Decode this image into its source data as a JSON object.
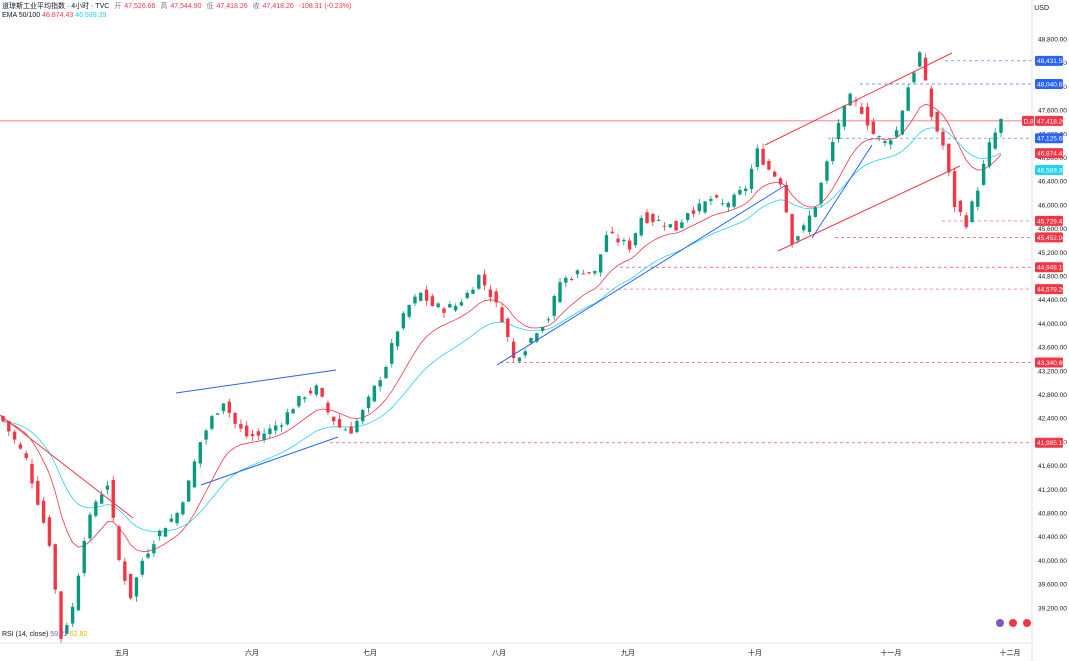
{
  "header": {
    "symbol": "道琼斯工业平均指数 · 4小时 · TVC",
    "open_label": "开",
    "open_value": "47,526.66",
    "high_label": "高",
    "high_value": "47,544.90",
    "low_label": "低",
    "low_value": "47,418.26",
    "close_label": "收",
    "close_value": "47,418.26",
    "change": "-108.31 (-0.23%)"
  },
  "ema": {
    "label": "EMA 50/100",
    "ema50_value": "46,874.43",
    "ema100_value": "46,589.39"
  },
  "rsi": {
    "label": "RSI (14, close)",
    "value1": "59.22",
    "value2": "62.82"
  },
  "currency": "USD",
  "colors": {
    "up": "#089981",
    "down": "#f23645",
    "ema50": "#f23645",
    "ema100": "#22d3ee",
    "trend_blue": "#2962ff",
    "trend_red": "#f23645"
  },
  "chart_data": {
    "type": "candlestick",
    "y_axis_ticks": [
      "48,800.00",
      "48,400.00",
      "48,000.00",
      "47,600.00",
      "47,200.00",
      "46,800.00",
      "46,400.00",
      "46,000.00",
      "45,600.00",
      "45,200.00",
      "44,800.00",
      "44,400.00",
      "44,000.00",
      "43,600.00",
      "43,200.00",
      "42,800.00",
      "42,400.00",
      "42,000.00",
      "41,600.00",
      "41,200.00",
      "40,800.00",
      "40,400.00",
      "40,000.00",
      "39,600.00",
      "39,200.00"
    ],
    "x_axis_labels": [
      "五月",
      "六月",
      "七月",
      "八月",
      "九月",
      "十月",
      "十一月",
      "十二月"
    ],
    "price_labels": [
      {
        "value": 48431.58,
        "text": "48,431.58",
        "color": "#2962ff"
      },
      {
        "value": 48040.63,
        "text": "48,040.63",
        "color": "#2962ff"
      },
      {
        "value": 47418.26,
        "text": "47,418.26",
        "color": "#f23645",
        "prefix": "D,8"
      },
      {
        "value": 47125.65,
        "text": "47,125.65",
        "color": "#2962ff"
      },
      {
        "value": 46874.43,
        "text": "46,874.43",
        "color": "#f23645"
      },
      {
        "value": 46589.39,
        "text": "46,589.39",
        "color": "#22d3ee"
      },
      {
        "value": 45729.42,
        "text": "45,729.42",
        "color": "#f23645"
      },
      {
        "value": 45452.04,
        "text": "45,452.04",
        "color": "#f23645"
      },
      {
        "value": 44948.15,
        "text": "44,948.15",
        "color": "#f23645"
      },
      {
        "value": 44579.2,
        "text": "44,579.20",
        "color": "#f23645"
      },
      {
        "value": 43340.69,
        "text": "43,340.69",
        "color": "#f23645"
      },
      {
        "value": 41985.15,
        "text": "41,985.15",
        "color": "#f23645"
      }
    ],
    "price_anchors": [
      [
        0,
        42350
      ],
      [
        4,
        41700
      ],
      [
        8,
        40300
      ],
      [
        10,
        38700
      ],
      [
        12,
        39200
      ],
      [
        14,
        40400
      ],
      [
        16,
        41000
      ],
      [
        18,
        41300
      ],
      [
        20,
        40000
      ],
      [
        22,
        39400
      ],
      [
        24,
        40000
      ],
      [
        26,
        40350
      ],
      [
        28,
        40600
      ],
      [
        30,
        40800
      ],
      [
        32,
        41300
      ],
      [
        34,
        42000
      ],
      [
        36,
        42400
      ],
      [
        38,
        42700
      ],
      [
        40,
        42300
      ],
      [
        42,
        42100
      ],
      [
        44,
        42100
      ],
      [
        46,
        42200
      ],
      [
        48,
        42350
      ],
      [
        50,
        42600
      ],
      [
        52,
        42800
      ],
      [
        54,
        42900
      ],
      [
        56,
        42500
      ],
      [
        58,
        42250
      ],
      [
        60,
        42200
      ],
      [
        62,
        42500
      ],
      [
        64,
        42900
      ],
      [
        66,
        43300
      ],
      [
        68,
        43900
      ],
      [
        70,
        44300
      ],
      [
        72,
        44500
      ],
      [
        74,
        44300
      ],
      [
        76,
        44250
      ],
      [
        78,
        44300
      ],
      [
        80,
        44500
      ],
      [
        82,
        44800
      ],
      [
        84,
        44500
      ],
      [
        86,
        44100
      ],
      [
        88,
        43400
      ],
      [
        90,
        43600
      ],
      [
        92,
        43900
      ],
      [
        94,
        44100
      ],
      [
        96,
        44700
      ],
      [
        98,
        44800
      ],
      [
        100,
        44900
      ],
      [
        102,
        44850
      ],
      [
        104,
        45500
      ],
      [
        106,
        45400
      ],
      [
        108,
        45300
      ],
      [
        110,
        45800
      ],
      [
        112,
        45750
      ],
      [
        114,
        45700
      ],
      [
        116,
        45600
      ],
      [
        118,
        45900
      ],
      [
        120,
        45950
      ],
      [
        122,
        46100
      ],
      [
        124,
        46000
      ],
      [
        126,
        46100
      ],
      [
        128,
        46300
      ],
      [
        130,
        46900
      ],
      [
        132,
        46600
      ],
      [
        134,
        46400
      ],
      [
        136,
        45400
      ],
      [
        138,
        45600
      ],
      [
        140,
        46000
      ],
      [
        142,
        46700
      ],
      [
        144,
        47400
      ],
      [
        146,
        47800
      ],
      [
        148,
        47600
      ],
      [
        150,
        47200
      ],
      [
        152,
        47050
      ],
      [
        154,
        47250
      ],
      [
        156,
        48000
      ],
      [
        158,
        48550
      ],
      [
        160,
        47500
      ],
      [
        162,
        47000
      ],
      [
        164,
        46000
      ],
      [
        166,
        45700
      ],
      [
        168,
        46300
      ],
      [
        170,
        47000
      ],
      [
        172,
        47418.26
      ]
    ],
    "ema50_values": "smoothed moving average",
    "trendlines": [
      {
        "color": "#f23645"
      },
      {
        "color": "#2962ff"
      },
      {
        "color": "#2962ff"
      },
      {
        "color": "#2962ff"
      },
      {
        "color": "#2962ff"
      },
      {
        "color": "#f23645"
      },
      {
        "color": "#f23645"
      }
    ],
    "grid": false
  }
}
